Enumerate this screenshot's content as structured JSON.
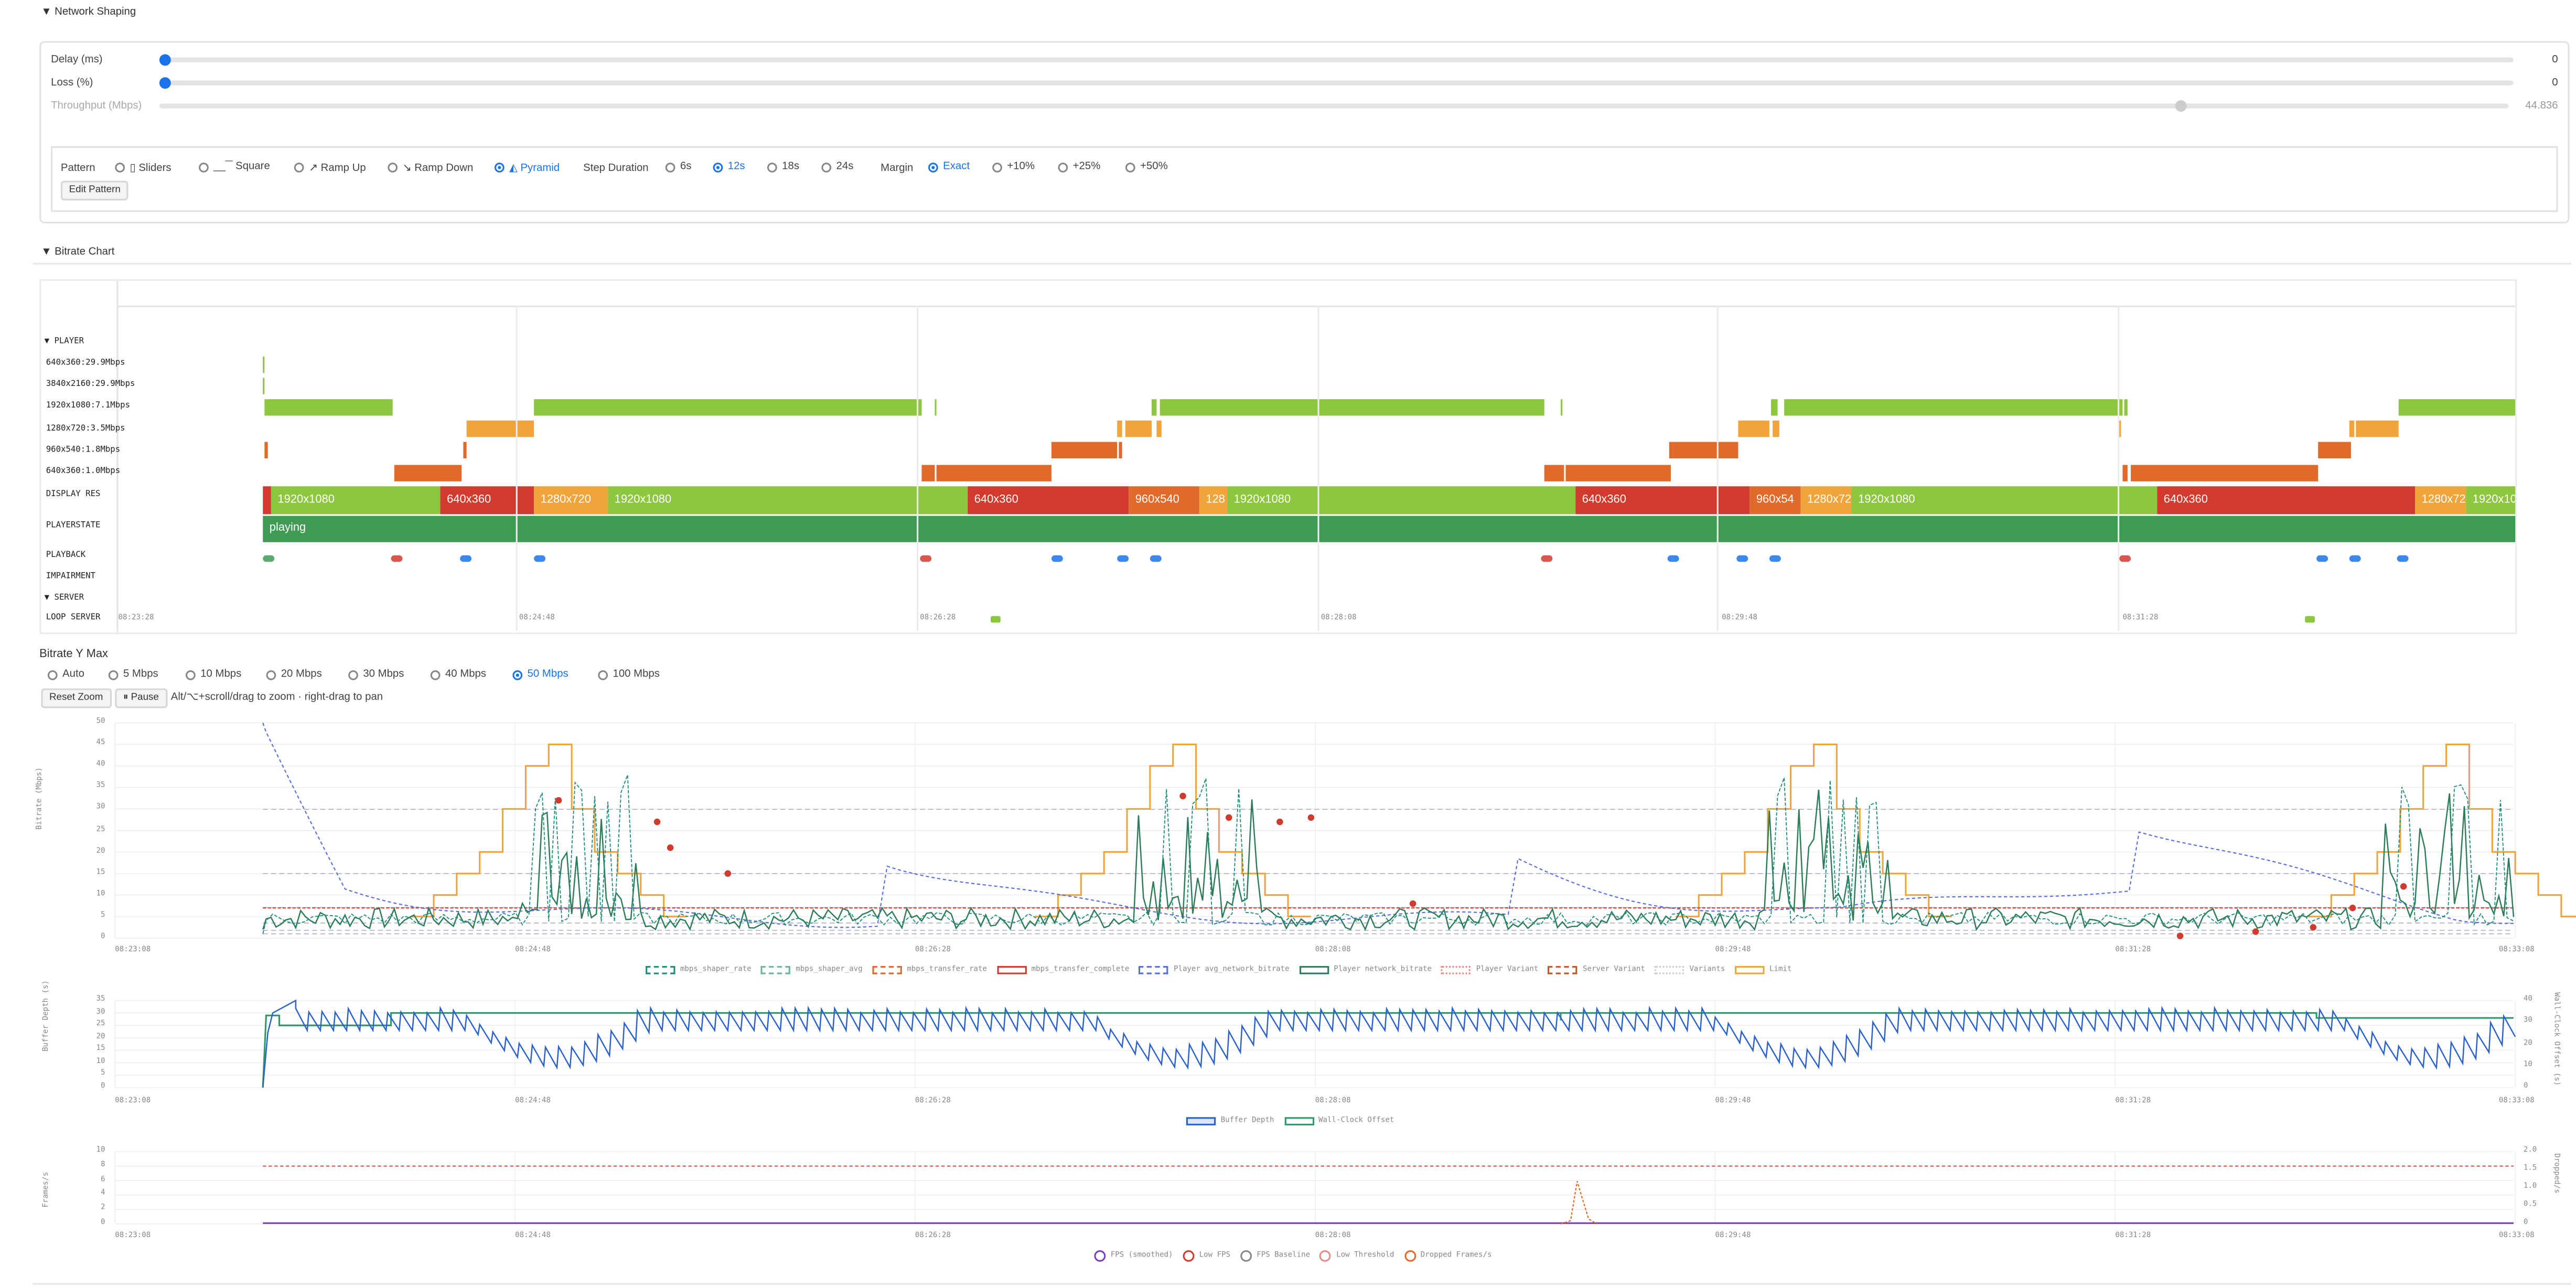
{
  "network_shaping": {
    "title": "▼ Network Shaping",
    "delay": {
      "label": "Delay (ms)",
      "value": "0"
    },
    "loss": {
      "label": "Loss (%)",
      "value": "0"
    },
    "throughput": {
      "label": "Throughput (Mbps)",
      "value": "44.836",
      "level_fraction": 0.86
    },
    "pattern_label": "Pattern",
    "patterns": [
      "▯ Sliders",
      "__‾‾ Square",
      "↗ Ramp Up",
      "↘ Ramp Down",
      "◭ Pyramid"
    ],
    "pattern_selected": 4,
    "step_label": "Step Duration",
    "steps": [
      "6s",
      "12s",
      "18s",
      "24s"
    ],
    "step_selected": 1,
    "margin_label": "Margin",
    "margins": [
      "Exact",
      "+10%",
      "+25%",
      "+50%"
    ],
    "margin_selected": 0,
    "edit_pattern": "Edit Pattern"
  },
  "bitrate_chart": {
    "title": "▼ Bitrate Chart",
    "player_group": "▼ PLAYER",
    "server_group": "▼ SERVER",
    "rows": [
      "640x360:29.9Mbps",
      "3840x2160:29.9Mbps",
      "1920x1080:7.1Mbps",
      "1280x720:3.5Mbps",
      "960x540:1.8Mbps",
      "640x360:1.0Mbps"
    ],
    "display_res_label": "DISPLAY RES",
    "playerstate_label": "PLAYERSTATE",
    "playback_label": "PLAYBACK",
    "impairment_label": "IMPAIRMENT",
    "loop_server_label": "LOOP SERVER",
    "display_segments": [
      "1920x1080",
      "640x360",
      "1280x720",
      "1920x1080",
      "640x360",
      "960x540",
      "128",
      "1920x1080",
      "640x360",
      "960x54",
      "1280x72",
      "1920x1080",
      "640x360",
      "1280x72",
      "1920x10"
    ],
    "playerstate_value": "playing",
    "time_ticks": [
      "08:23:28",
      "08:24:48",
      "08:26:28",
      "08:28:08",
      "08:29:48",
      "08:31:28"
    ]
  },
  "y_max": {
    "title": "Bitrate Y Max",
    "options": [
      "Auto",
      "5 Mbps",
      "10 Mbps",
      "20 Mbps",
      "30 Mbps",
      "40 Mbps",
      "50 Mbps",
      "100 Mbps"
    ],
    "selected": 6,
    "reset_zoom": "Reset Zoom",
    "pause": "⏸ Pause",
    "hint": "Alt/⌥+scroll/drag to zoom · right-drag to pan"
  },
  "bitrate_plot": {
    "ylabel": "Bitrate (Mbps)",
    "yticks": [
      "50",
      "45",
      "40",
      "35",
      "30",
      "25",
      "20",
      "15",
      "10",
      "5",
      "0"
    ],
    "xticks": [
      "08:23:08",
      "08:24:48",
      "08:26:28",
      "08:28:08",
      "08:29:48",
      "08:31:28",
      "08:33:08"
    ],
    "legend": [
      "mbps_shaper_rate",
      "mbps_shaper_avg",
      "mbps_transfer_rate",
      "mbps_transfer_complete",
      "Player avg_network_bitrate",
      "Player network_bitrate",
      "Player Variant",
      "Server Variant",
      "Variants",
      "Limit"
    ]
  },
  "buffer_plot": {
    "ylabel": "Buffer Depth (s)",
    "y2label": "Wall-Clock Offset (s)",
    "yticks": [
      "35",
      "30",
      "25",
      "20",
      "15",
      "10",
      "5",
      "0"
    ],
    "y2ticks": [
      "40",
      "30",
      "20",
      "10",
      "0"
    ],
    "xticks": [
      "08:23:08",
      "08:24:48",
      "08:26:28",
      "08:28:08",
      "08:29:48",
      "08:31:28",
      "08:33:08"
    ],
    "legend": [
      "Buffer Depth",
      "Wall-Clock Offset"
    ]
  },
  "fps_plot": {
    "ylabel": "Frames/s",
    "y2label": "Dropped/s",
    "yticks": [
      "10",
      "8",
      "6",
      "4",
      "2",
      "0"
    ],
    "y2ticks": [
      "2.0",
      "1.5",
      "1.0",
      "0.5",
      "0"
    ],
    "xticks": [
      "08:23:08",
      "08:24:48",
      "08:26:28",
      "08:28:08",
      "08:29:48",
      "08:31:28",
      "08:33:08"
    ],
    "legend": [
      "FPS (smoothed)",
      "Low FPS",
      "FPS Baseline",
      "Low Threshold",
      "Dropped Frames/s"
    ]
  },
  "colors": {
    "accent": "#1a73e8",
    "green": "#8dc63f",
    "orange": "#f0a43a",
    "darkorange": "#e06a2c",
    "red": "#d13b2e",
    "stategreen": "#3d9b53"
  }
}
